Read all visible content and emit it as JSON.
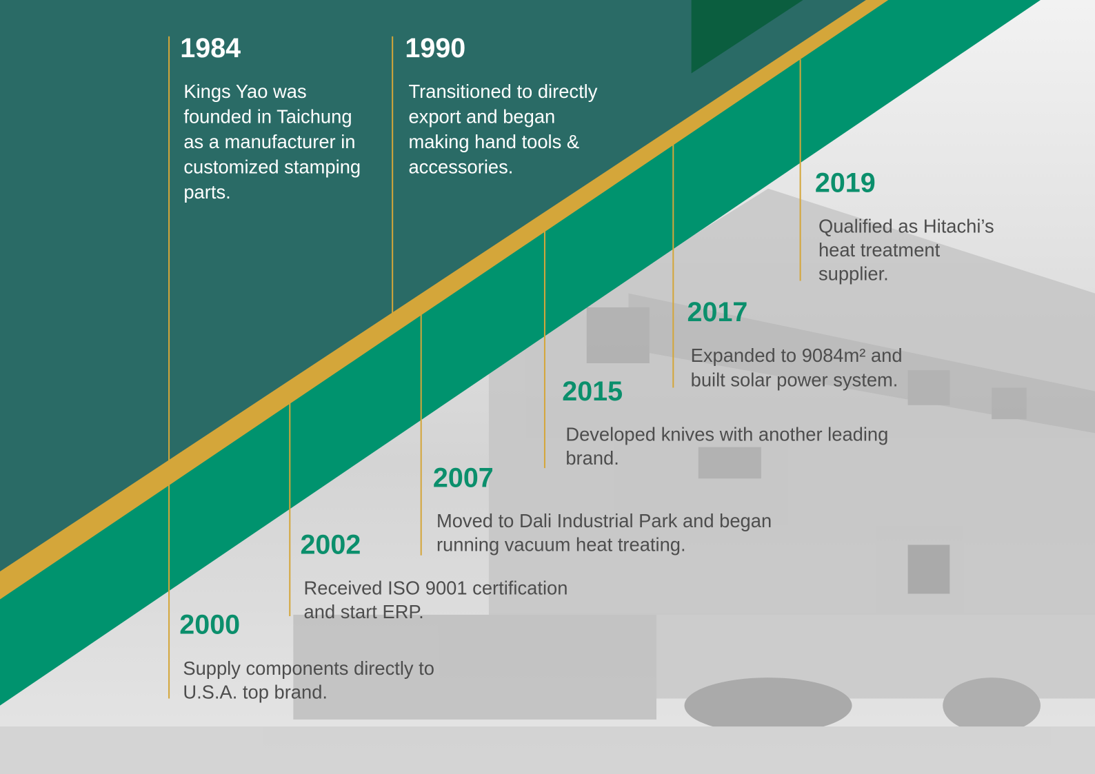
{
  "items": [
    {
      "year": "1984",
      "lines": [
        "Kings Yao was",
        "founded in Taichung",
        "as a manufacturer in",
        "customized stamping",
        "parts."
      ]
    },
    {
      "year": "1990",
      "lines": [
        "Transitioned to directly",
        "export and began",
        "making hand tools &",
        "accessories."
      ]
    },
    {
      "year": "2000",
      "lines": [
        "Supply components directly to",
        "U.S.A. top brand."
      ]
    },
    {
      "year": "2002",
      "lines": [
        "Received ISO 9001 certification",
        "and start ERP."
      ]
    },
    {
      "year": "2007",
      "lines": [
        "Moved to Dali Industrial Park and began",
        "running vacuum heat treating."
      ]
    },
    {
      "year": "2015",
      "lines": [
        "Developed knives with another leading",
        "brand."
      ]
    },
    {
      "year": "2017",
      "lines": [
        "Expanded to 9084m² and",
        "built solar power system."
      ]
    },
    {
      "year": "2019",
      "lines": [
        "Qualified as Hitachi’s",
        "heat treatment",
        "supplier."
      ]
    }
  ]
}
